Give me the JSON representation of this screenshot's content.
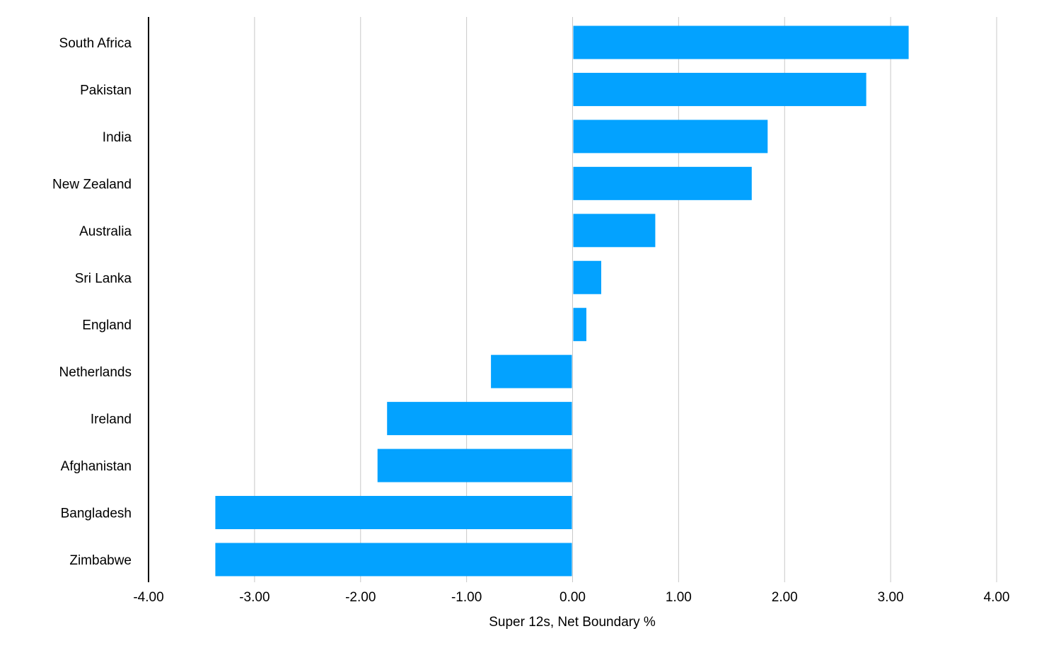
{
  "chart_data": {
    "type": "bar",
    "orientation": "horizontal",
    "categories": [
      "South Africa",
      "Pakistan",
      "India",
      "New Zealand",
      "Australia",
      "Sri Lanka",
      "England",
      "Netherlands",
      "Ireland",
      "Afghanistan",
      "Bangladesh",
      "Zimbabwe"
    ],
    "values": [
      3.17,
      2.77,
      1.84,
      1.69,
      0.78,
      0.27,
      0.13,
      -0.77,
      -1.75,
      -1.84,
      -3.37,
      -3.37
    ],
    "xlabel": "Super 12s, Net Boundary %",
    "xlim": [
      -4,
      4
    ],
    "xticks": [
      "-4.00",
      "-3.00",
      "-2.00",
      "-1.00",
      "0.00",
      "1.00",
      "2.00",
      "3.00",
      "4.00"
    ],
    "grid": "vertical",
    "bar_color": "#03A2FF",
    "legend": "none"
  }
}
